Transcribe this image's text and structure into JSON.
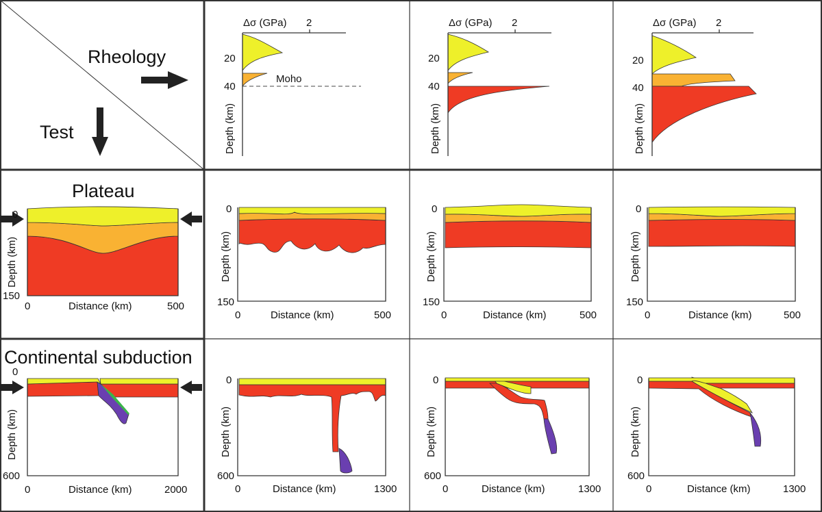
{
  "corner": {
    "rheology": "Rheology",
    "test": "Test"
  },
  "rheology_panels": {
    "xlabel": "Δσ (GPa)",
    "xtick": "2",
    "ylabel": "Depth (km)",
    "yticks": [
      "20",
      "40"
    ],
    "moho_label": "Moho"
  },
  "rows": {
    "plateau": {
      "title": "Plateau",
      "ylabel": "Depth (km)",
      "xlabel": "Distance (km)",
      "ytick_top": "0",
      "ytick_bottom": "150",
      "xtick_left": "0",
      "xtick_right": "500"
    },
    "subduction": {
      "title": "Continental subduction",
      "ylabel": "Depth (km)",
      "xlabel": "Distance (km)",
      "ytick_top": "0",
      "ytick_bottom": "600",
      "xtick_left": "0",
      "xtick_right_first": "2000",
      "xtick_right": "1300"
    }
  },
  "colors": {
    "upper_crust": "#eef02a",
    "lower_crust": "#f9b233",
    "mantle": "#ef3b24",
    "slab": "#6a3fb0",
    "sediment": "#3cb44b"
  }
}
